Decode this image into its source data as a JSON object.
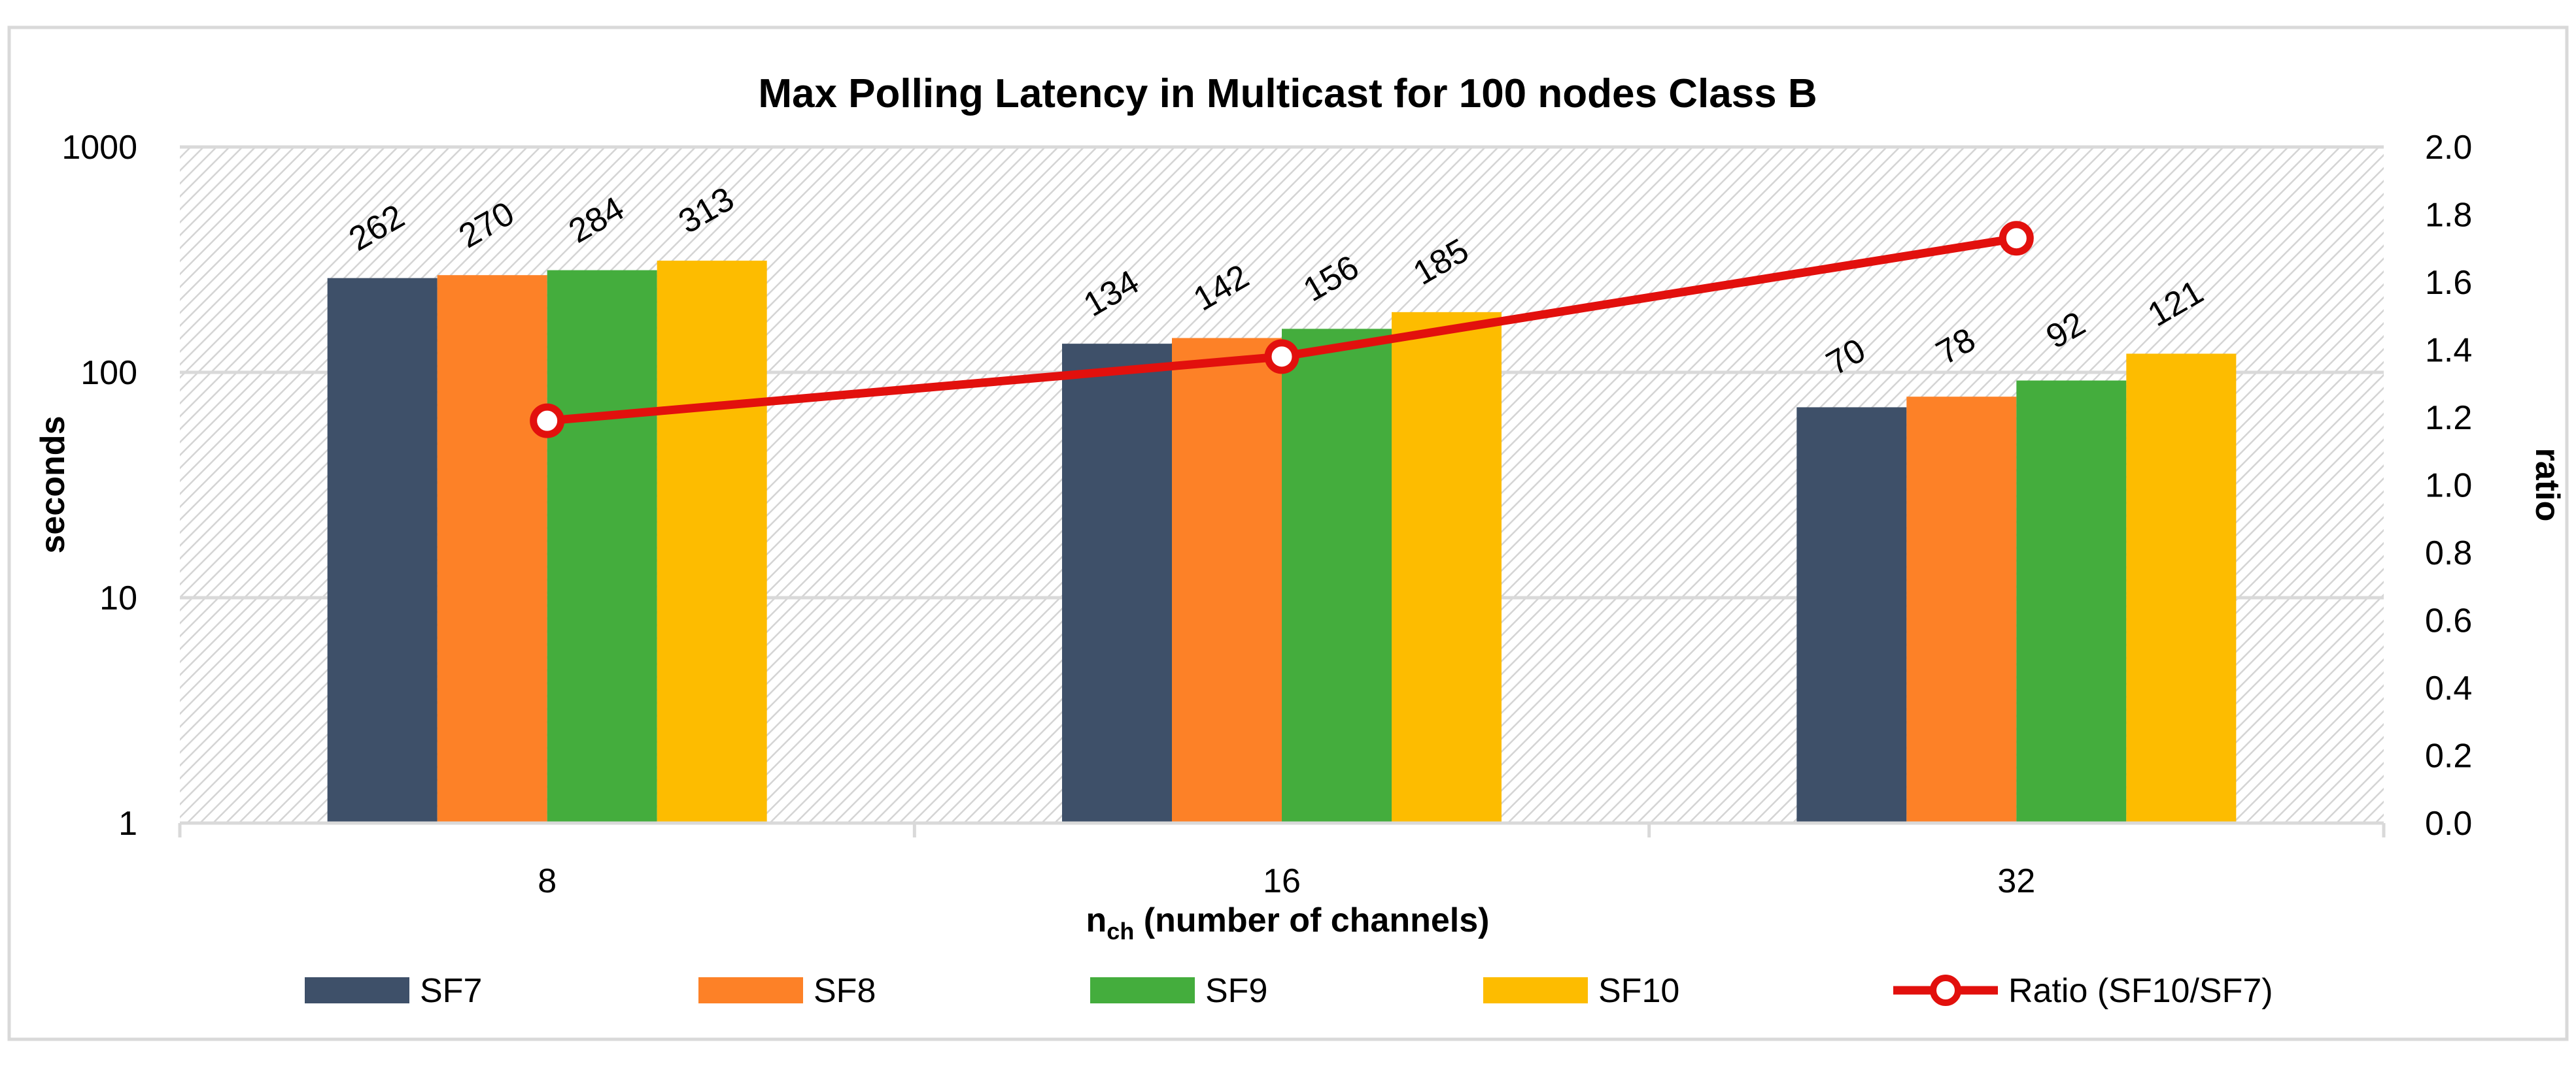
{
  "chart_data": {
    "type": "bar",
    "title": "Max Polling Latency in Multicast for 100 nodes Class B",
    "xlabel_main": "n",
    "xlabel_sub": "ch",
    "xlabel_rest": " (number of channels)",
    "ylabel": "seconds",
    "y2label": "ratio",
    "categories": [
      "8",
      "16",
      "32"
    ],
    "y_scale": "log",
    "ylim": [
      1,
      1000
    ],
    "y_ticks": [
      "1",
      "10",
      "100",
      "1000"
    ],
    "y2lim": [
      0,
      2
    ],
    "y2_ticks": [
      "0.0",
      "0.2",
      "0.4",
      "0.6",
      "0.8",
      "1.0",
      "1.2",
      "1.4",
      "1.6",
      "1.8",
      "2.0"
    ],
    "grid": true,
    "legend_position": "bottom",
    "series": [
      {
        "name": "SF7",
        "color": "#3e5069",
        "values": [
          262,
          134,
          70
        ],
        "labels": [
          "262",
          "134",
          "70"
        ]
      },
      {
        "name": "SF8",
        "color": "#fd8127",
        "values": [
          270,
          142,
          78
        ],
        "labels": [
          "270",
          "142",
          "78"
        ]
      },
      {
        "name": "SF9",
        "color": "#44ad3d",
        "values": [
          284,
          156,
          92
        ],
        "labels": [
          "284",
          "156",
          "92"
        ]
      },
      {
        "name": "SF10",
        "color": "#fdbc00",
        "values": [
          313,
          185,
          121
        ],
        "labels": [
          "313",
          "185",
          "121"
        ]
      }
    ],
    "line_series": {
      "name": "Ratio (SF10/SF7)",
      "color": "#e2100d",
      "axis": "secondary",
      "values": [
        1.19,
        1.38,
        1.73
      ]
    }
  }
}
